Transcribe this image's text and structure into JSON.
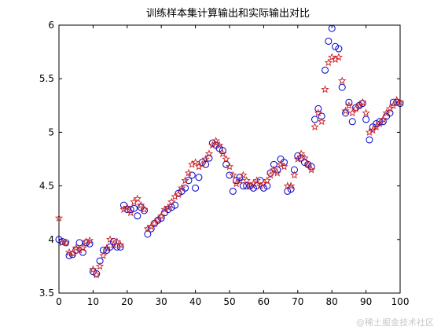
{
  "chart_data": {
    "type": "scatter",
    "title": "训练样本集计算输出和实际输出对比",
    "xlabel": "",
    "ylabel": "",
    "xlim": [
      0,
      100
    ],
    "ylim": [
      3.5,
      6
    ],
    "x_ticks": [
      "0",
      "10",
      "20",
      "30",
      "40",
      "50",
      "60",
      "70",
      "80",
      "90",
      "100"
    ],
    "y_ticks": [
      "3.5",
      "4",
      "4.5",
      "5",
      "5.5",
      "6"
    ],
    "grid": false,
    "legend": "none",
    "series": [
      {
        "marker": "circle",
        "color": "#0000cc",
        "values": [
          4.0,
          3.98,
          3.97,
          3.85,
          3.86,
          3.9,
          3.97,
          3.88,
          3.97,
          3.96,
          3.7,
          3.68,
          3.8,
          3.9,
          3.9,
          3.93,
          3.98,
          3.93,
          3.93,
          4.32,
          4.28,
          4.28,
          4.29,
          4.22,
          4.3,
          4.27,
          4.05,
          4.1,
          4.15,
          4.18,
          4.2,
          4.25,
          4.28,
          4.3,
          4.32,
          4.43,
          4.45,
          4.48,
          4.55,
          4.6,
          4.48,
          4.58,
          4.72,
          4.7,
          4.76,
          4.9,
          4.88,
          4.85,
          4.83,
          4.7,
          4.6,
          4.45,
          4.55,
          4.58,
          4.5,
          4.5,
          4.5,
          4.48,
          4.5,
          4.55,
          4.48,
          4.5,
          4.62,
          4.7,
          4.65,
          4.75,
          4.72,
          4.45,
          4.47,
          4.65,
          4.78,
          4.76,
          4.72,
          4.7,
          4.68,
          5.12,
          5.22,
          5.15,
          5.58,
          5.85,
          5.97,
          5.8,
          5.78,
          5.42,
          5.18,
          5.28,
          5.1,
          5.23,
          5.25,
          5.27,
          5.12,
          4.93,
          5.05,
          5.08,
          5.1,
          5.1,
          5.15,
          5.18,
          5.28,
          5.28,
          5.27
        ]
      },
      {
        "marker": "star",
        "color": "#cc2222",
        "values": [
          4.2,
          3.97,
          3.97,
          3.88,
          3.87,
          3.92,
          3.9,
          3.92,
          3.98,
          3.99,
          3.72,
          3.67,
          3.75,
          3.85,
          3.92,
          4.0,
          3.95,
          3.98,
          3.95,
          4.28,
          4.3,
          4.25,
          4.35,
          4.38,
          4.32,
          4.28,
          4.1,
          4.12,
          4.15,
          4.18,
          4.22,
          4.28,
          4.3,
          4.35,
          4.4,
          4.42,
          4.48,
          4.55,
          4.62,
          4.7,
          4.72,
          4.68,
          4.7,
          4.75,
          4.8,
          4.88,
          4.92,
          4.88,
          4.8,
          4.75,
          4.68,
          4.6,
          4.52,
          4.55,
          4.6,
          4.55,
          4.5,
          4.52,
          4.55,
          4.5,
          4.52,
          4.55,
          4.6,
          4.65,
          4.62,
          4.7,
          4.68,
          4.5,
          4.5,
          4.6,
          4.75,
          4.8,
          4.76,
          4.7,
          4.65,
          5.05,
          5.18,
          5.1,
          5.4,
          5.65,
          5.7,
          5.68,
          5.7,
          5.48,
          5.2,
          5.25,
          5.18,
          5.22,
          5.25,
          5.28,
          5.18,
          5.0,
          5.02,
          5.05,
          5.08,
          5.12,
          5.18,
          5.22,
          5.25,
          5.3,
          5.28
        ]
      }
    ]
  },
  "watermark": "@稀土掘金技术社区"
}
